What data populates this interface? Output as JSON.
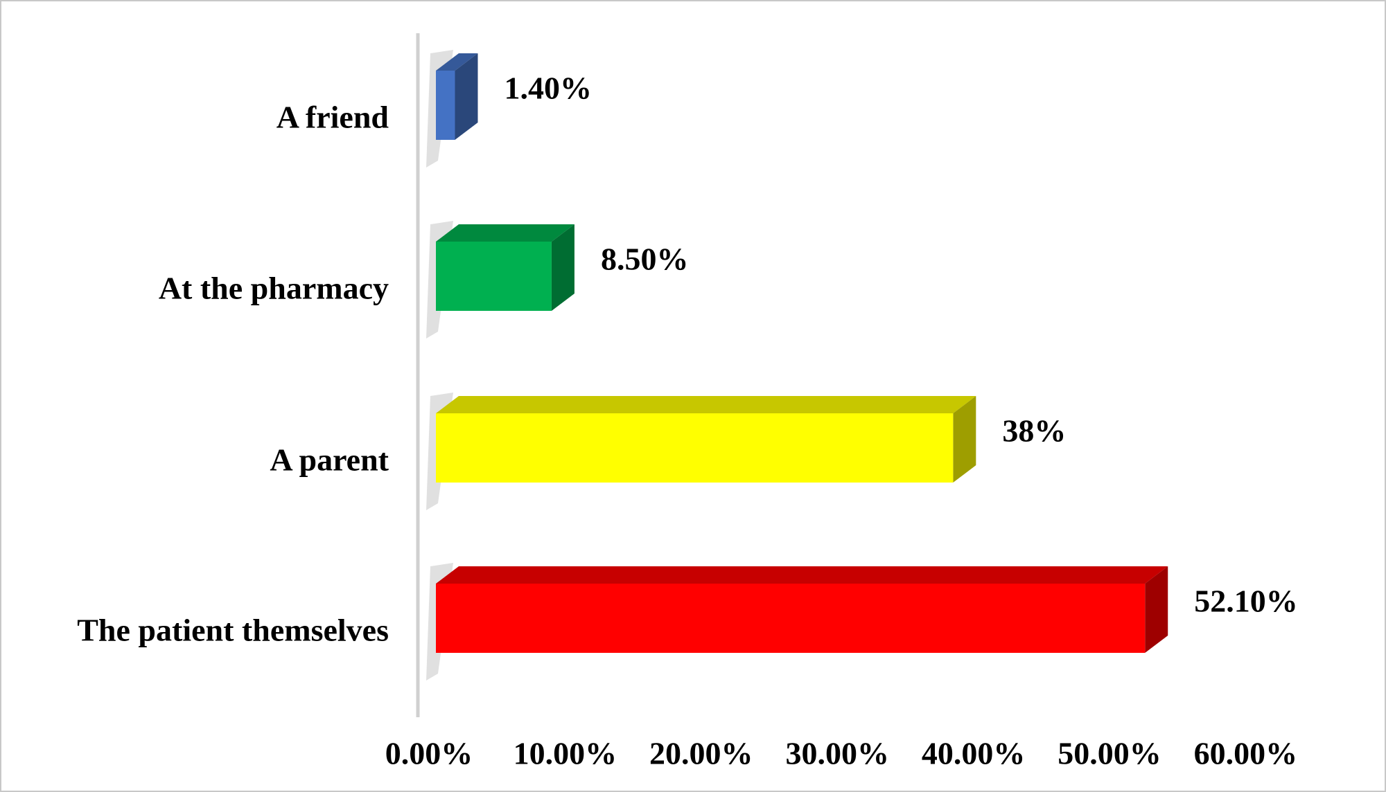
{
  "chart_data": {
    "type": "bar3d-horizontal",
    "categories": [
      "A friend",
      "At the pharmacy",
      "A parent",
      "The patient themselves"
    ],
    "values": [
      1.4,
      8.5,
      38,
      52.1
    ],
    "value_labels": [
      "1.40%",
      "8.50%",
      "38%",
      "52.10%"
    ],
    "colors": [
      "#4472c4",
      "#00b050",
      "#ffff00",
      "#ff0000"
    ],
    "xlim": [
      0,
      60
    ],
    "xticks": [
      {
        "value": 0,
        "label": "0.00%"
      },
      {
        "value": 10,
        "label": "10.00%"
      },
      {
        "value": 20,
        "label": "20.00%"
      },
      {
        "value": 30,
        "label": "30.00%"
      },
      {
        "value": 40,
        "label": "40.00%"
      },
      {
        "value": 50,
        "label": "50.00%"
      },
      {
        "value": 60,
        "label": "60.00%"
      }
    ]
  }
}
